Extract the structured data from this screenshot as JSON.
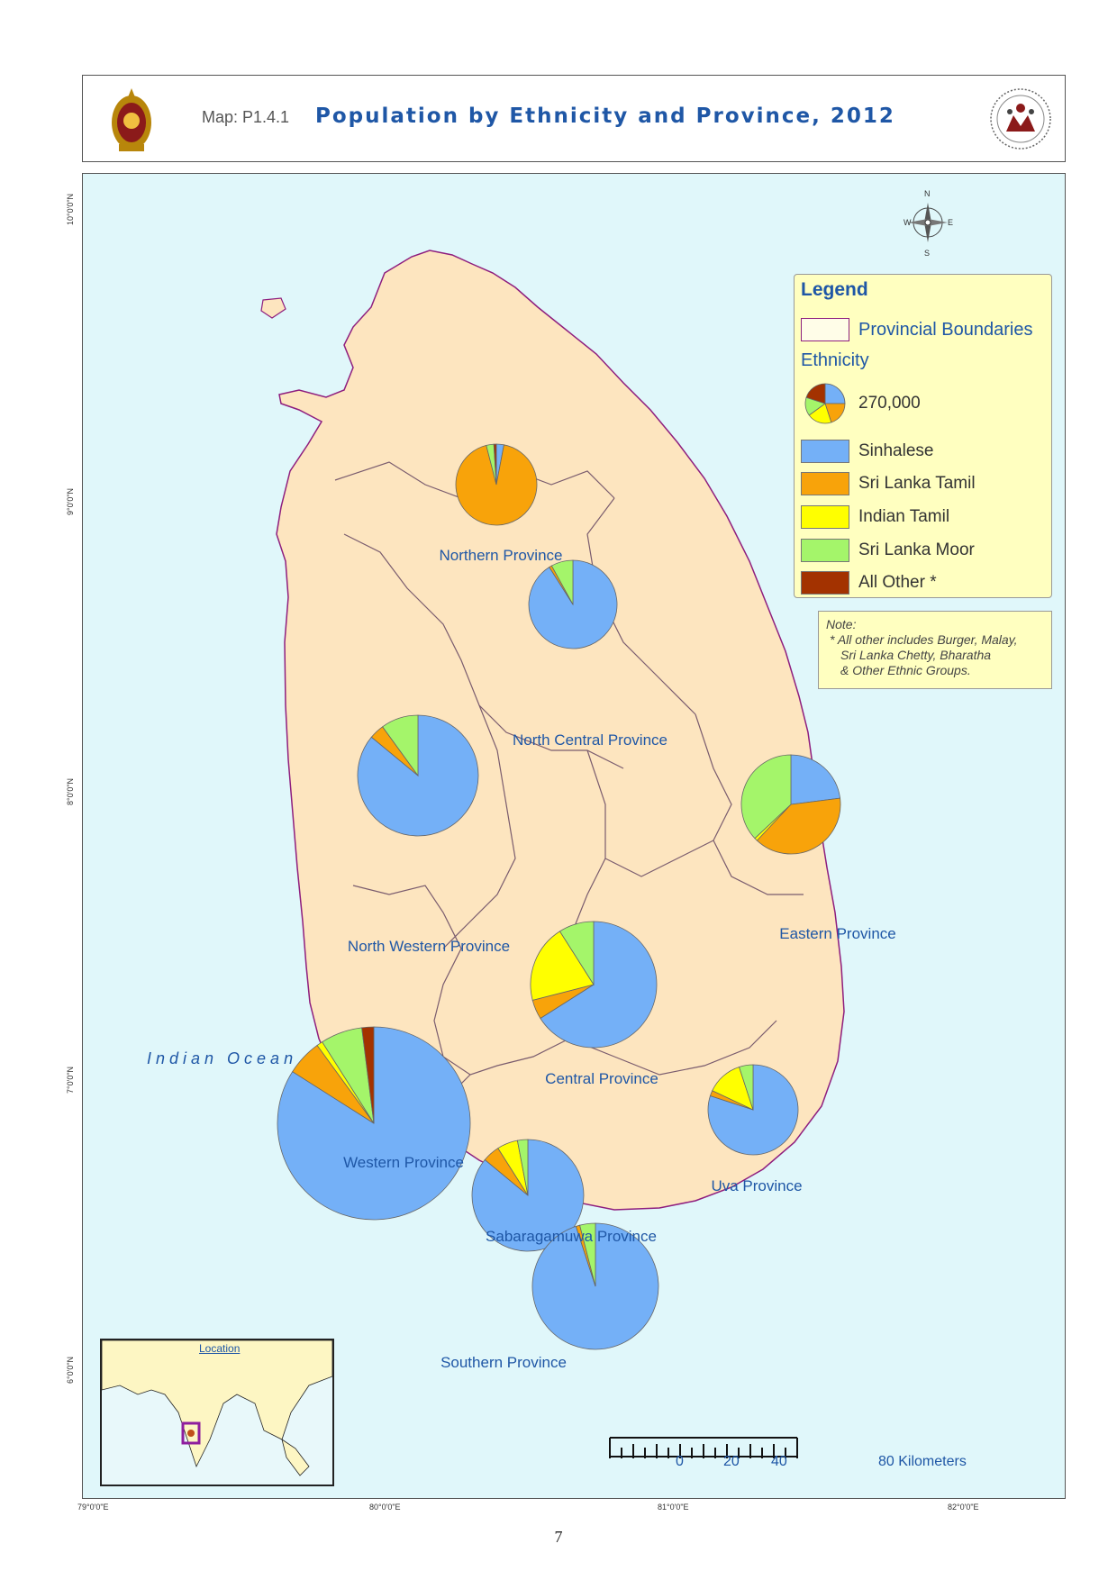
{
  "header": {
    "map_code": "Map: P1.4.1",
    "title": "Population by Ethnicity and Province, 2012"
  },
  "legend": {
    "title": "Legend",
    "boundary_label": "Provincial Boundaries",
    "ethnicity_heading": "Ethnicity",
    "size_reference": "270,000",
    "categories": [
      {
        "label": "Sinhalese",
        "color": "#74b0f7"
      },
      {
        "label": "Sri Lanka Tamil",
        "color": "#f8a30a"
      },
      {
        "label": "Indian Tamil",
        "color": "#ffff00"
      },
      {
        "label": "Sri Lanka Moor",
        "color": "#a4f56a"
      },
      {
        "label": "All Other *",
        "color": "#a33200"
      }
    ]
  },
  "note": {
    "lines": [
      "Note:",
      "* All other includes Burger, Malay,",
      "Sri Lanka Chetty, Bharatha",
      "& Other Ethnic Groups."
    ]
  },
  "provinces": [
    {
      "name": "Northern Province",
      "shares": [
        3,
        93,
        0,
        3,
        1
      ]
    },
    {
      "name": "North Central Province",
      "shares": [
        91,
        1,
        0,
        8,
        0
      ]
    },
    {
      "name": "North Western Province",
      "shares": [
        86,
        4,
        0,
        10,
        0
      ]
    },
    {
      "name": "Eastern Province",
      "shares": [
        23,
        39,
        1,
        37,
        0
      ]
    },
    {
      "name": "Central Province",
      "shares": [
        66,
        5,
        20,
        9,
        0
      ]
    },
    {
      "name": "Western Province",
      "shares": [
        84,
        6,
        1,
        7,
        2
      ]
    },
    {
      "name": "Sabaragamuwa Province",
      "shares": [
        86,
        5,
        6,
        3,
        0
      ]
    },
    {
      "name": "Uva Province",
      "shares": [
        80,
        2,
        13,
        5,
        0
      ]
    },
    {
      "name": "Southern Province",
      "shares": [
        95,
        1,
        0,
        4,
        0
      ]
    }
  ],
  "ocean_label": "Indian Ocean",
  "inset_label": "Location",
  "scale_bar": {
    "labels": [
      "0",
      "20",
      "40",
      "80 Kilometers"
    ]
  },
  "axes": {
    "longitudes": [
      "79°0'0\"E",
      "80°0'0\"E",
      "81°0'0\"E",
      "82°0'0\"E"
    ],
    "latitudes": [
      "10°0'0\"N",
      "9°0'0\"N",
      "8°0'0\"N",
      "7°0'0\"N",
      "6°0'0\"N"
    ]
  },
  "compass": {
    "n": "N",
    "s": "S",
    "e": "E",
    "w": "W"
  },
  "page_number": "7"
}
